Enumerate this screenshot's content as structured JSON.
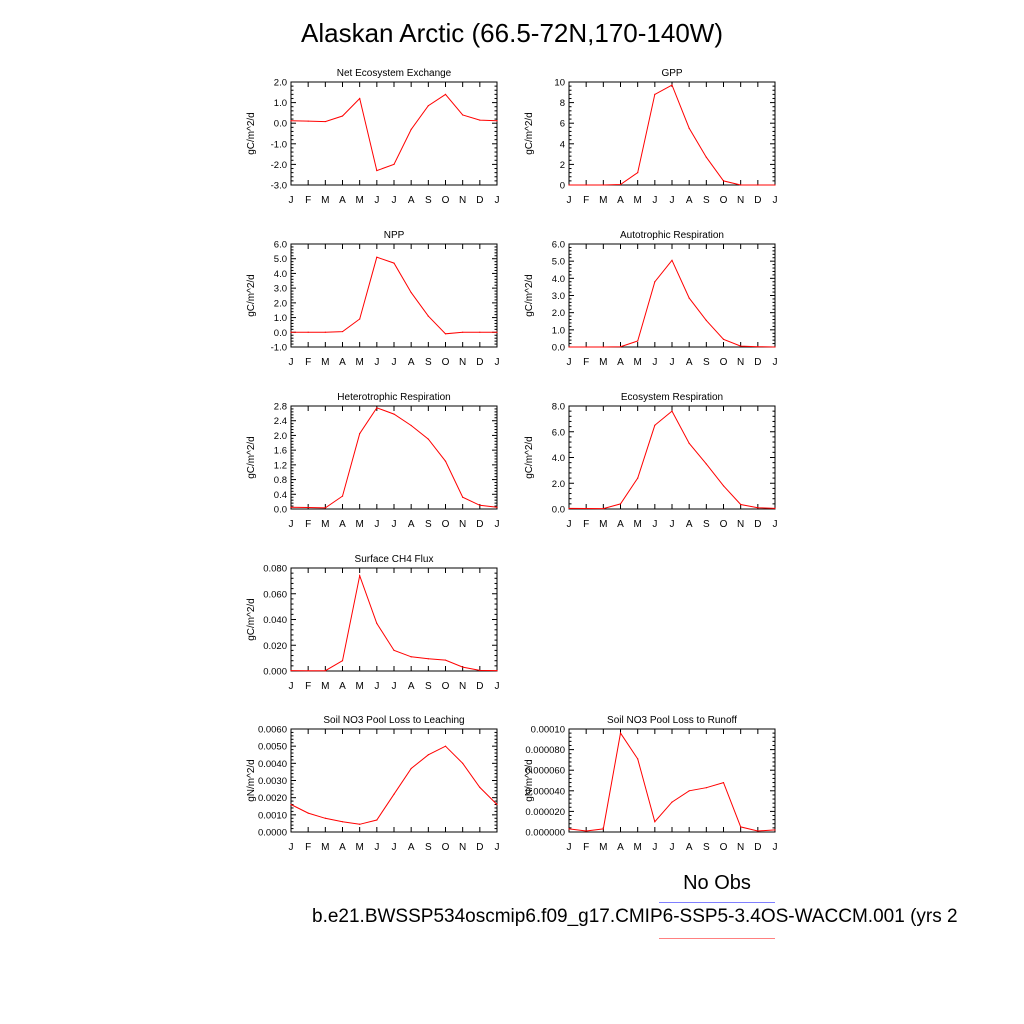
{
  "title": "Alaskan Arctic (66.5-72N,170-140W)",
  "months": [
    "J",
    "F",
    "M",
    "A",
    "M",
    "J",
    "J",
    "A",
    "S",
    "O",
    "N",
    "D",
    "J"
  ],
  "legend": {
    "obs_label": "No Obs",
    "obs_color": "#7f7fff",
    "case_label": "b.e21.BWSSP534oscmip6.f09_g17.CMIP6-SSP5-3.4OS-WACCM.001 (yrs 2",
    "case_color": "#ff8080"
  },
  "series_color": "#ff0000",
  "chart_data": [
    {
      "type": "line",
      "title": "Net Ecosystem Exchange",
      "ylabel": "gC/m^2/d",
      "ylim": [
        -3.0,
        2.0
      ],
      "yticks": [
        "-3.0",
        "-2.0",
        "-1.0",
        "0.0",
        "1.0",
        "2.0"
      ],
      "x": [
        "J",
        "F",
        "M",
        "A",
        "M",
        "J",
        "J",
        "A",
        "S",
        "O",
        "N",
        "D",
        "J"
      ],
      "values": [
        0.12,
        0.1,
        0.08,
        0.35,
        1.2,
        -2.3,
        -2.0,
        -0.3,
        0.85,
        1.4,
        0.4,
        0.15,
        0.12
      ]
    },
    {
      "type": "line",
      "title": "GPP",
      "ylabel": "gC/m^2/d",
      "ylim": [
        0,
        10
      ],
      "yticks": [
        "0",
        "2",
        "4",
        "6",
        "8",
        "10"
      ],
      "x": [
        "J",
        "F",
        "M",
        "A",
        "M",
        "J",
        "J",
        "A",
        "S",
        "O",
        "N",
        "D",
        "J"
      ],
      "values": [
        0,
        0,
        0,
        0.05,
        1.2,
        8.8,
        9.7,
        5.5,
        2.7,
        0.4,
        0,
        0,
        0
      ]
    },
    {
      "type": "line",
      "title": "NPP",
      "ylabel": "gC/m^2/d",
      "ylim": [
        -1.0,
        6.0
      ],
      "yticks": [
        "-1.0",
        "0.0",
        "1.0",
        "2.0",
        "3.0",
        "4.0",
        "5.0",
        "6.0"
      ],
      "x": [
        "J",
        "F",
        "M",
        "A",
        "M",
        "J",
        "J",
        "A",
        "S",
        "O",
        "N",
        "D",
        "J"
      ],
      "values": [
        0.0,
        0.0,
        0.0,
        0.05,
        0.9,
        5.1,
        4.7,
        2.7,
        1.1,
        -0.1,
        0.0,
        0.0,
        0.0
      ]
    },
    {
      "type": "line",
      "title": "Autotrophic Respiration",
      "ylabel": "gC/m^2/d",
      "ylim": [
        0.0,
        6.0
      ],
      "yticks": [
        "0.0",
        "1.0",
        "2.0",
        "3.0",
        "4.0",
        "5.0",
        "6.0"
      ],
      "x": [
        "J",
        "F",
        "M",
        "A",
        "M",
        "J",
        "J",
        "A",
        "S",
        "O",
        "N",
        "D",
        "J"
      ],
      "values": [
        0,
        0,
        0,
        0.02,
        0.35,
        3.8,
        5.05,
        2.85,
        1.55,
        0.45,
        0.05,
        0.02,
        0
      ]
    },
    {
      "type": "line",
      "title": "Heterotrophic Respiration",
      "ylabel": "gC/m^2/d",
      "ylim": [
        0.0,
        2.8
      ],
      "yticks": [
        "0.0",
        "0.4",
        "0.8",
        "1.2",
        "1.6",
        "2.0",
        "2.4",
        "2.8"
      ],
      "x": [
        "J",
        "F",
        "M",
        "A",
        "M",
        "J",
        "J",
        "A",
        "S",
        "O",
        "N",
        "D",
        "J"
      ],
      "values": [
        0.05,
        0.04,
        0.03,
        0.35,
        2.05,
        2.75,
        2.58,
        2.27,
        1.9,
        1.3,
        0.32,
        0.1,
        0.05
      ]
    },
    {
      "type": "line",
      "title": "Ecosystem Respiration",
      "ylabel": "gC/m^2/d",
      "ylim": [
        0.0,
        8.0
      ],
      "yticks": [
        "0.0",
        "2.0",
        "4.0",
        "6.0",
        "8.0"
      ],
      "x": [
        "J",
        "F",
        "M",
        "A",
        "M",
        "J",
        "J",
        "A",
        "S",
        "O",
        "N",
        "D",
        "J"
      ],
      "values": [
        0.05,
        0.04,
        0.03,
        0.4,
        2.4,
        6.5,
        7.6,
        5.1,
        3.5,
        1.8,
        0.35,
        0.1,
        0.05
      ]
    },
    {
      "type": "line",
      "title": "Surface CH4 Flux",
      "ylabel": "gC/m^2/d",
      "ylim": [
        0.0,
        0.08
      ],
      "yticks": [
        "0.000",
        "0.020",
        "0.040",
        "0.060",
        "0.080"
      ],
      "x": [
        "J",
        "F",
        "M",
        "A",
        "M",
        "J",
        "J",
        "A",
        "S",
        "O",
        "N",
        "D",
        "J"
      ],
      "values": [
        0.0003,
        0.0002,
        0.0002,
        0.008,
        0.074,
        0.037,
        0.016,
        0.011,
        0.0095,
        0.0085,
        0.003,
        0.0005,
        0.0003
      ]
    },
    {
      "type": "line",
      "title": "Soil NO3 Pool Loss to Leaching",
      "ylabel": "gN/m^2/d",
      "ylim": [
        0.0,
        0.006
      ],
      "yticks": [
        "0.0000",
        "0.0010",
        "0.0020",
        "0.0030",
        "0.0040",
        "0.0050",
        "0.0060"
      ],
      "x": [
        "J",
        "F",
        "M",
        "A",
        "M",
        "J",
        "J",
        "A",
        "S",
        "O",
        "N",
        "D",
        "J"
      ],
      "values": [
        0.0016,
        0.0011,
        0.0008,
        0.0006,
        0.00045,
        0.0007,
        0.0022,
        0.0037,
        0.0045,
        0.005,
        0.004,
        0.0026,
        0.0016
      ]
    },
    {
      "type": "line",
      "title": "Soil NO3 Pool Loss to Runoff",
      "ylabel": "gN/m^2/d",
      "ylim": [
        0.0,
        0.0001
      ],
      "yticks": [
        "0.000000",
        "0.000020",
        "0.000040",
        "0.000060",
        "0.000080",
        "0.00010"
      ],
      "x": [
        "J",
        "F",
        "M",
        "A",
        "M",
        "J",
        "J",
        "A",
        "S",
        "O",
        "N",
        "D",
        "J"
      ],
      "values": [
        3e-06,
        1e-06,
        3e-06,
        9.6e-05,
        7.1e-05,
        1e-05,
        2.9e-05,
        4e-05,
        4.3e-05,
        4.8e-05,
        5e-06,
        1e-06,
        2e-06
      ]
    }
  ]
}
